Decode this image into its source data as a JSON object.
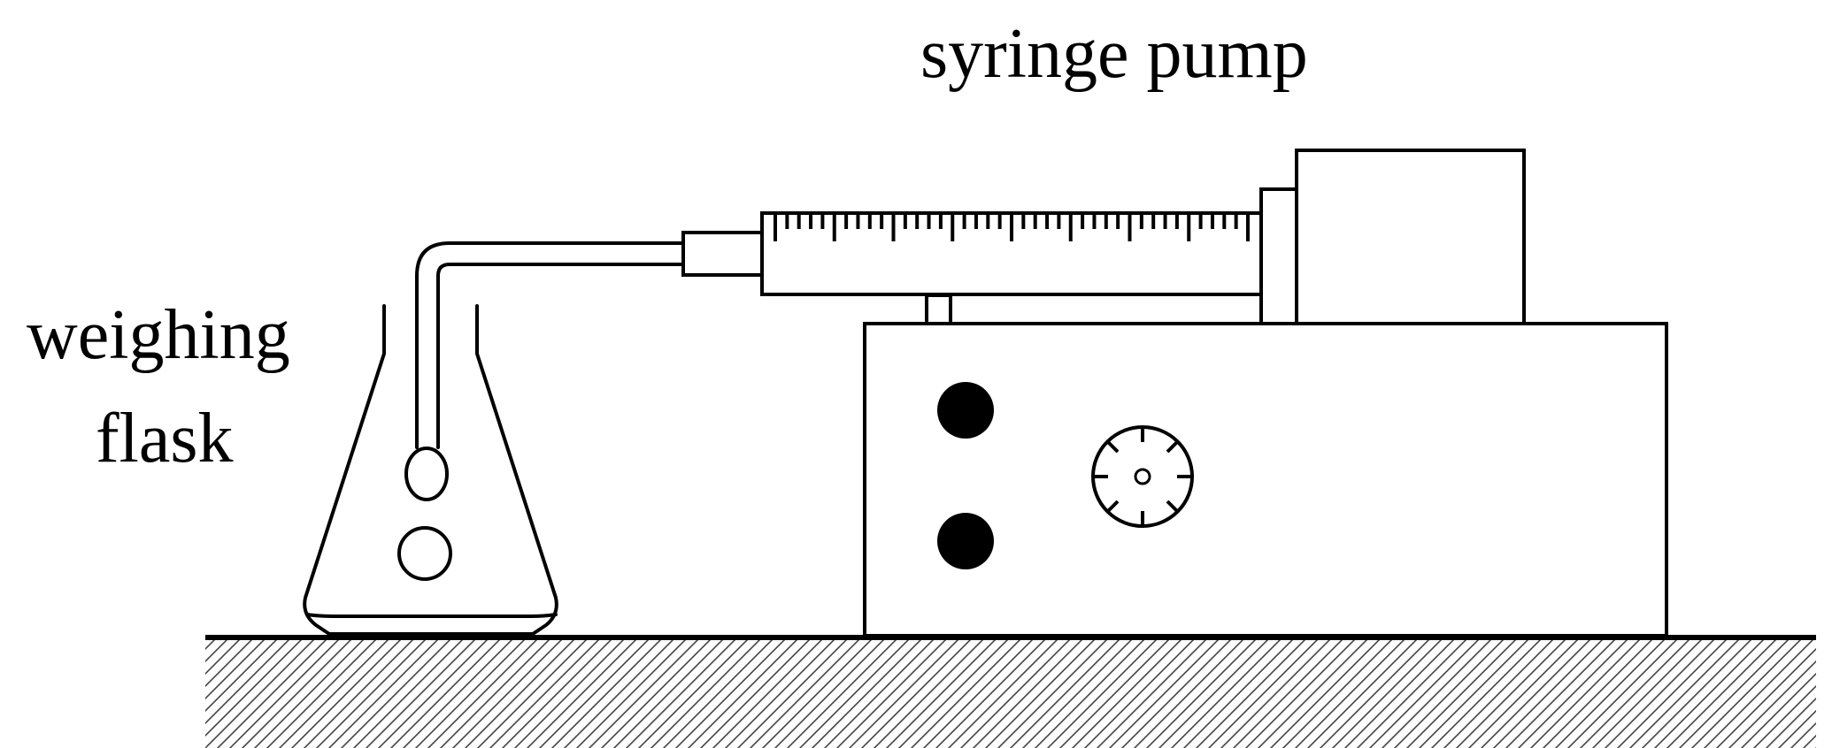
{
  "labels": {
    "syringe_pump": "syringe pump",
    "weighing_line1": "weighing",
    "weighing_line2": "flask"
  }
}
